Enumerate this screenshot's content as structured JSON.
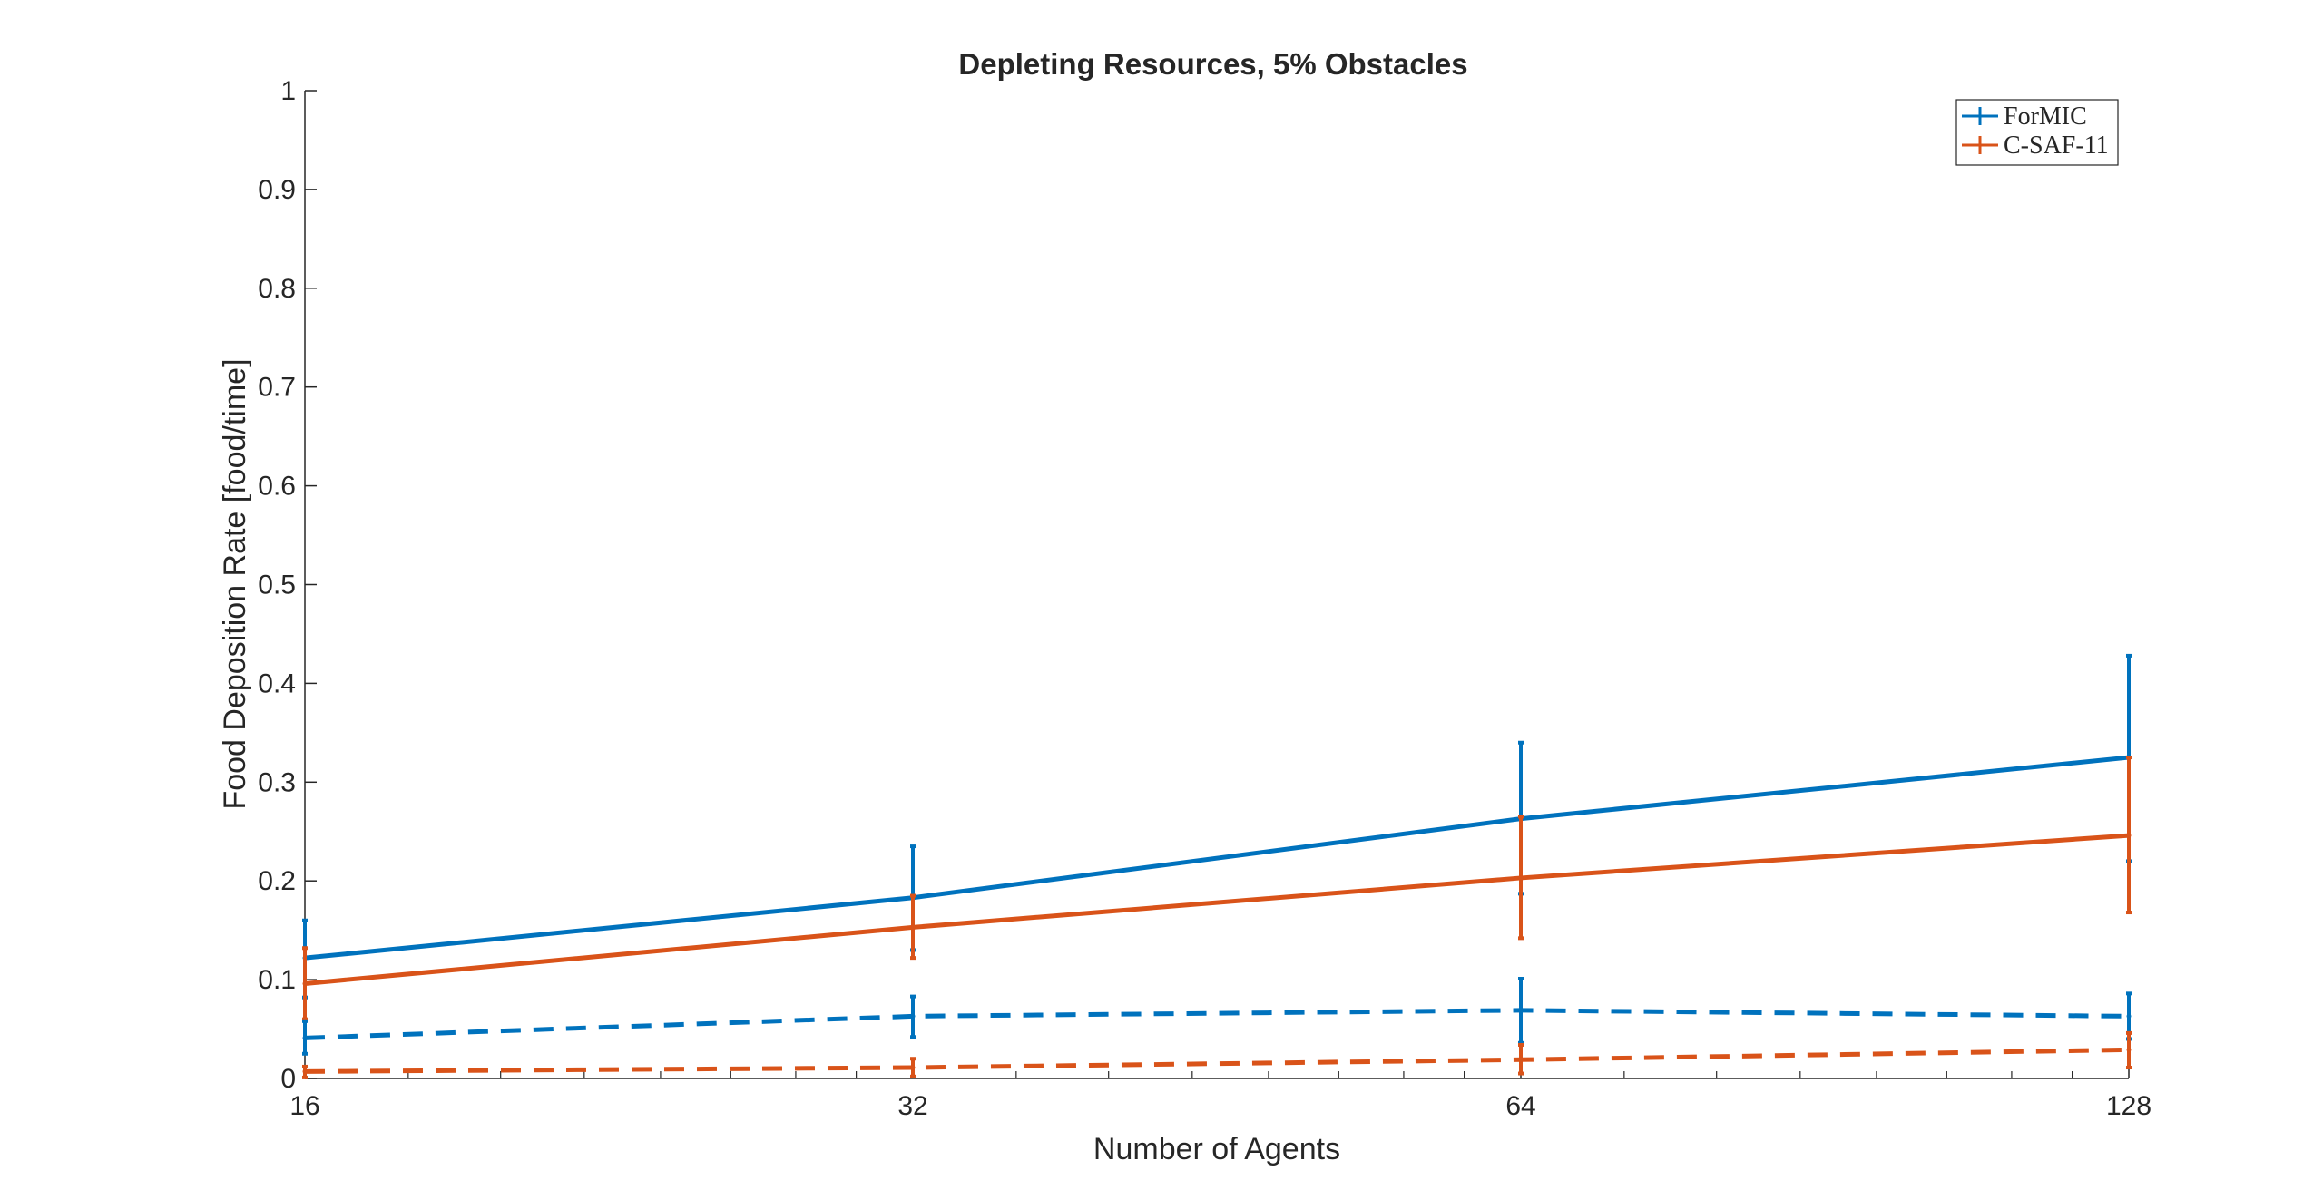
{
  "chart_data": {
    "type": "line",
    "title": "Depleting Resources, 5% Obstacles",
    "xlabel": "Number of Agents",
    "ylabel": "Food Deposition Rate [food/time]",
    "x": [
      16,
      32,
      64,
      128
    ],
    "x_scale": "log2",
    "xlim": [
      16,
      128
    ],
    "ylim": [
      0,
      1
    ],
    "xticks": [
      16,
      32,
      64,
      128
    ],
    "xtick_labels": [
      "16",
      "32",
      "64",
      "128"
    ],
    "yticks": [
      0,
      0.1,
      0.2,
      0.3,
      0.4,
      0.5,
      0.6,
      0.7,
      0.8,
      0.9,
      1
    ],
    "ytick_labels": [
      "0",
      "0.1",
      "0.2",
      "0.3",
      "0.4",
      "0.5",
      "0.6",
      "0.7",
      "0.8",
      "0.9",
      "1"
    ],
    "grid": false,
    "legend_position": "top-right",
    "series": [
      {
        "name": "ForMIC",
        "color": "#0072BD",
        "style": "solid",
        "values": [
          0.122,
          0.183,
          0.263,
          0.325
        ],
        "err_low": [
          0.082,
          0.13,
          0.187,
          0.22
        ],
        "err_high": [
          0.16,
          0.235,
          0.34,
          0.428
        ]
      },
      {
        "name": "C-SAF-11",
        "color": "#D95319",
        "style": "solid",
        "values": [
          0.096,
          0.153,
          0.203,
          0.246
        ],
        "err_low": [
          0.06,
          0.122,
          0.142,
          0.168
        ],
        "err_high": [
          0.132,
          0.185,
          0.265,
          0.325
        ]
      },
      {
        "color": "#0072BD",
        "style": "dashed",
        "values": [
          0.041,
          0.063,
          0.069,
          0.063
        ],
        "err_low": [
          0.025,
          0.042,
          0.036,
          0.04
        ],
        "err_high": [
          0.058,
          0.083,
          0.101,
          0.086
        ]
      },
      {
        "color": "#D95319",
        "style": "dashed",
        "values": [
          0.007,
          0.011,
          0.019,
          0.029
        ],
        "err_low": [
          0.001,
          0.002,
          0.005,
          0.011
        ],
        "err_high": [
          0.012,
          0.02,
          0.034,
          0.046
        ]
      }
    ]
  }
}
